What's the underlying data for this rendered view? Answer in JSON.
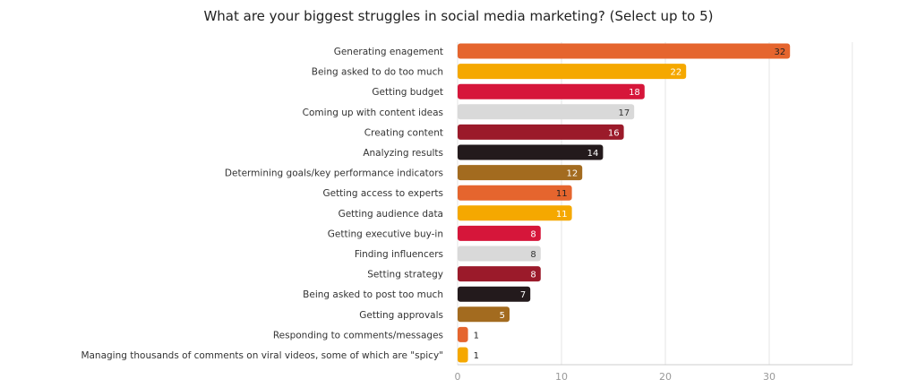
{
  "chart_data": {
    "type": "bar",
    "orientation": "horizontal",
    "title": "What are your biggest struggles in social media marketing? (Select up to 5)",
    "xlabel": "",
    "ylabel": "",
    "xlim": [
      0,
      38
    ],
    "xticks": [
      0,
      10,
      20,
      30
    ],
    "grid": true,
    "legend": "none",
    "categories": [
      "Generating enagement",
      "Being asked to do too much",
      "Getting budget",
      "Coming up with content ideas",
      "Creating content",
      "Analyzing results",
      "Determining goals/key performance indicators",
      "Getting access to experts",
      "Getting audience data",
      "Getting executive buy-in",
      "Finding influencers",
      "Setting strategy",
      "Being asked to post too much",
      "Getting approvals",
      "Responding to comments/messages",
      "Managing thousands of comments on viral videos, some of which are \"spicy\""
    ],
    "values": [
      32,
      22,
      18,
      17,
      16,
      14,
      12,
      11,
      11,
      8,
      8,
      8,
      7,
      5,
      1,
      1
    ],
    "colors": [
      "#e5652e",
      "#f5a800",
      "#d6163a",
      "#d9d9d9",
      "#9b1a2a",
      "#231a1c",
      "#a36b1f",
      "#e5652e",
      "#f5a800",
      "#d6163a",
      "#d9d9d9",
      "#9b1a2a",
      "#231a1c",
      "#a36b1f",
      "#e5652e",
      "#f5a800"
    ],
    "label_colors": [
      "#222222",
      "#ffffff",
      "#ffffff",
      "#333333",
      "#ffffff",
      "#ffffff",
      "#ffffff",
      "#222222",
      "#ffffff",
      "#ffffff",
      "#333333",
      "#ffffff",
      "#ffffff",
      "#ffffff",
      "#222222",
      "#222222"
    ],
    "grid_color": "#e6e6e6",
    "tick_color": "#999999"
  }
}
